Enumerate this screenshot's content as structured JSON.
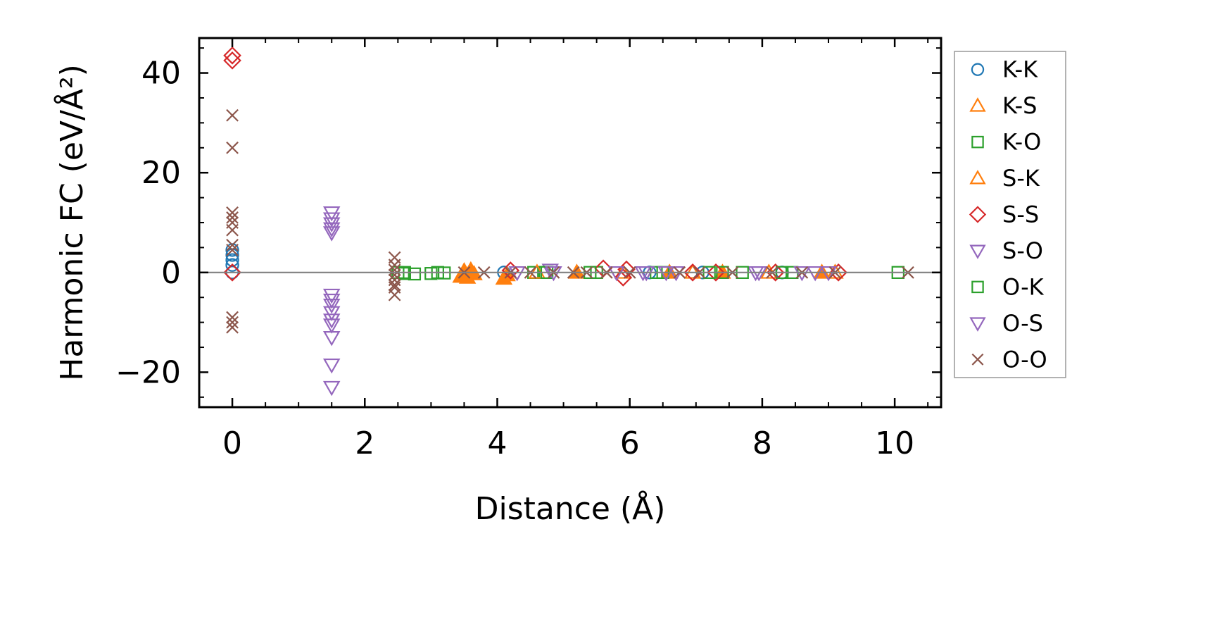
{
  "chart_data": {
    "type": "scatter",
    "title": "",
    "xlabel": "Distance (Å)",
    "ylabel": "Harmonic FC (eV/Å²)",
    "xlim": [
      -0.5,
      10.7
    ],
    "ylim": [
      -27,
      47
    ],
    "x_ticks": [
      0,
      2,
      4,
      6,
      8,
      10
    ],
    "x_tick_labels": [
      "0",
      "2",
      "4",
      "6",
      "8",
      "10"
    ],
    "y_ticks": [
      -20,
      0,
      20,
      40
    ],
    "y_tick_labels": [
      "−20",
      "0",
      "20",
      "40"
    ],
    "grid": false,
    "zero_line": true,
    "legend_position": "outside-right",
    "series": [
      {
        "name": "K-K",
        "marker": "circle",
        "color": "#1f77b4",
        "filled": false,
        "points": [
          [
            0,
            0
          ],
          [
            0,
            1.5
          ],
          [
            0,
            2.5
          ],
          [
            0,
            3.5
          ],
          [
            0,
            4.5
          ],
          [
            4.1,
            0
          ],
          [
            6.3,
            0
          ],
          [
            7.1,
            0
          ],
          [
            8.3,
            0
          ]
        ]
      },
      {
        "name": "K-S",
        "marker": "triangle-up",
        "color": "#ff7f0e",
        "filled": true,
        "points": [
          [
            3.45,
            -0.8
          ],
          [
            3.5,
            0.3
          ],
          [
            3.55,
            -1.0
          ],
          [
            3.6,
            0.5
          ],
          [
            3.65,
            -0.3
          ],
          [
            4.1,
            -1.2
          ],
          [
            4.15,
            -0.5
          ],
          [
            5.2,
            0
          ],
          [
            6.6,
            0
          ],
          [
            7.4,
            0
          ],
          [
            8.9,
            0
          ]
        ]
      },
      {
        "name": "K-O",
        "marker": "square",
        "color": "#2ca02c",
        "filled": false,
        "points": [
          [
            2.5,
            0
          ],
          [
            2.6,
            -0.2
          ],
          [
            2.75,
            -0.3
          ],
          [
            3.0,
            -0.2
          ],
          [
            3.2,
            -0.1
          ],
          [
            4.55,
            0
          ],
          [
            4.7,
            0
          ],
          [
            5.5,
            0
          ],
          [
            6.5,
            0
          ],
          [
            7.4,
            0
          ],
          [
            8.45,
            0
          ]
        ]
      },
      {
        "name": "S-K",
        "marker": "triangle-up",
        "color": "#ff7f0e",
        "filled": false,
        "points": [
          [
            3.5,
            0
          ],
          [
            4.6,
            0
          ],
          [
            5.9,
            0
          ],
          [
            6.95,
            0
          ],
          [
            8.1,
            0
          ],
          [
            9.1,
            0
          ]
        ]
      },
      {
        "name": "S-S",
        "marker": "diamond",
        "color": "#d62728",
        "filled": false,
        "points": [
          [
            0,
            43.5
          ],
          [
            0,
            42.5
          ],
          [
            0,
            0
          ],
          [
            4.2,
            0.4
          ],
          [
            5.6,
            0.8
          ],
          [
            5.9,
            -1.0
          ],
          [
            5.95,
            0.6
          ],
          [
            6.95,
            0
          ],
          [
            7.3,
            0
          ],
          [
            8.2,
            0
          ],
          [
            9.15,
            0
          ]
        ]
      },
      {
        "name": "S-O",
        "marker": "triangle-down",
        "color": "#9467bd",
        "filled": false,
        "points": [
          [
            1.5,
            12
          ],
          [
            1.5,
            10.8
          ],
          [
            1.5,
            9.8
          ],
          [
            1.5,
            8.8
          ],
          [
            1.5,
            8.0
          ],
          [
            1.5,
            -4.5
          ],
          [
            1.5,
            -5.5
          ],
          [
            1.5,
            -6.5
          ],
          [
            1.5,
            -8
          ],
          [
            1.5,
            -9.5
          ],
          [
            1.5,
            -10.5
          ],
          [
            1.5,
            -13
          ],
          [
            1.5,
            -18.5
          ],
          [
            1.5,
            -23
          ],
          [
            4.8,
            0.5
          ],
          [
            6.2,
            0
          ],
          [
            6.7,
            0
          ],
          [
            7.9,
            0
          ],
          [
            8.8,
            0
          ]
        ]
      },
      {
        "name": "O-K",
        "marker": "square",
        "color": "#2ca02c",
        "filled": false,
        "points": [
          [
            2.6,
            0
          ],
          [
            3.1,
            0
          ],
          [
            4.75,
            0
          ],
          [
            5.4,
            0
          ],
          [
            6.4,
            0
          ],
          [
            7.2,
            0
          ],
          [
            7.7,
            0
          ],
          [
            8.3,
            0
          ],
          [
            10.05,
            0
          ]
        ]
      },
      {
        "name": "O-S",
        "marker": "triangle-down",
        "color": "#9467bd",
        "filled": false,
        "points": [
          [
            4.3,
            0
          ],
          [
            4.85,
            0
          ],
          [
            5.8,
            0
          ],
          [
            6.25,
            0
          ],
          [
            6.55,
            0
          ],
          [
            7.95,
            0
          ],
          [
            8.6,
            0
          ],
          [
            9.0,
            0
          ]
        ]
      },
      {
        "name": "O-O",
        "marker": "x",
        "color": "#8c564b",
        "filled": false,
        "points": [
          [
            0,
            31.5
          ],
          [
            0,
            25
          ],
          [
            0,
            12
          ],
          [
            0,
            11
          ],
          [
            0,
            10
          ],
          [
            0,
            8.5
          ],
          [
            0,
            5.5
          ],
          [
            0,
            4.5
          ],
          [
            0,
            -9
          ],
          [
            0,
            -10
          ],
          [
            0,
            -11
          ],
          [
            2.45,
            3
          ],
          [
            2.45,
            1.5
          ],
          [
            2.45,
            0.5
          ],
          [
            2.45,
            -0.5
          ],
          [
            2.45,
            -1.5
          ],
          [
            2.45,
            -2.5
          ],
          [
            2.45,
            -3
          ],
          [
            2.45,
            -4.5
          ],
          [
            3.5,
            0
          ],
          [
            3.8,
            0
          ],
          [
            4.2,
            0
          ],
          [
            4.5,
            0
          ],
          [
            4.85,
            0
          ],
          [
            5.15,
            0
          ],
          [
            5.35,
            0
          ],
          [
            5.65,
            0
          ],
          [
            6.0,
            0
          ],
          [
            6.75,
            0
          ],
          [
            7.05,
            0
          ],
          [
            7.55,
            0
          ],
          [
            8.15,
            0
          ],
          [
            8.6,
            0
          ],
          [
            9.1,
            0
          ],
          [
            10.2,
            0
          ]
        ]
      }
    ]
  }
}
